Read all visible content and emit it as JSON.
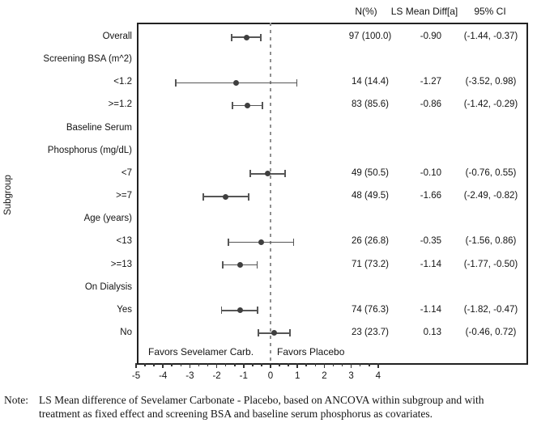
{
  "chart_data": {
    "type": "forest",
    "title": "",
    "ylabel": "Subgroup",
    "columns": {
      "n": "N(%)",
      "mean": "LS Mean Diff[a]",
      "ci": "95% CI"
    },
    "x_axis": {
      "major_ticks": [
        -5,
        -4,
        -3,
        -2,
        -1,
        0,
        1,
        2,
        3,
        4
      ],
      "minors_between_majors": 2,
      "range_shown": [
        -5,
        4
      ]
    },
    "reference_line_x": 0,
    "favors_left": "Favors Sevelamer Carb.",
    "favors_right": "Favors Placebo",
    "rows": [
      {
        "label": "Overall",
        "kind": "data",
        "n_pct": "97 (100.0)",
        "mean": -0.9,
        "mean_text": "-0.90",
        "ci_low": -1.44,
        "ci_high": -0.37,
        "ci_text": "(-1.44, -0.37)"
      },
      {
        "label": "Screening BSA (m^2)",
        "kind": "category"
      },
      {
        "label": "<1.2",
        "kind": "data",
        "n_pct": "14 (14.4)",
        "mean": -1.27,
        "mean_text": "-1.27",
        "ci_low": -3.52,
        "ci_high": 0.98,
        "ci_text": "(-3.52, 0.98)"
      },
      {
        "label": ">=1.2",
        "kind": "data",
        "n_pct": "83 (85.6)",
        "mean": -0.86,
        "mean_text": "-0.86",
        "ci_low": -1.42,
        "ci_high": -0.29,
        "ci_text": "(-1.42, -0.29)"
      },
      {
        "label": "Baseline Serum",
        "kind": "category"
      },
      {
        "label": "Phosphorus (mg/dL)",
        "kind": "category"
      },
      {
        "label": "<7",
        "kind": "data",
        "n_pct": "49 (50.5)",
        "mean": -0.1,
        "mean_text": "-0.10",
        "ci_low": -0.76,
        "ci_high": 0.55,
        "ci_text": "(-0.76, 0.55)"
      },
      {
        "label": ">=7",
        "kind": "data",
        "n_pct": "48 (49.5)",
        "mean": -1.66,
        "mean_text": "-1.66",
        "ci_low": -2.49,
        "ci_high": -0.82,
        "ci_text": "(-2.49, -0.82)"
      },
      {
        "label": "Age (years)",
        "kind": "category"
      },
      {
        "label": "<13",
        "kind": "data",
        "n_pct": "26 (26.8)",
        "mean": -0.35,
        "mean_text": "-0.35",
        "ci_low": -1.56,
        "ci_high": 0.86,
        "ci_text": "(-1.56, 0.86)"
      },
      {
        "label": ">=13",
        "kind": "data",
        "n_pct": "71 (73.2)",
        "mean": -1.14,
        "mean_text": "-1.14",
        "ci_low": -1.77,
        "ci_high": -0.5,
        "ci_text": "(-1.77, -0.50)"
      },
      {
        "label": "On Dialysis",
        "kind": "category"
      },
      {
        "label": "Yes",
        "kind": "data",
        "n_pct": "74 (76.3)",
        "mean": -1.14,
        "mean_text": "-1.14",
        "ci_low": -1.82,
        "ci_high": -0.47,
        "ci_text": "(-1.82, -0.47)"
      },
      {
        "label": "No",
        "kind": "data",
        "n_pct": "23 (23.7)",
        "mean": 0.13,
        "mean_text": "0.13",
        "ci_low": -0.46,
        "ci_high": 0.72,
        "ci_text": "(-0.46, 0.72)"
      }
    ],
    "note": {
      "label": "Note:",
      "lines": [
        "LS Mean difference of Sevelamer Carbonate - Placebo, based on ANCOVA within subgroup and with",
        "treatment as fixed effect and screening BSA and baseline serum phosphorus as covariates."
      ]
    },
    "colors": {
      "marker": "#3f3f3f",
      "whisker": "#565656",
      "frame": "#222222",
      "reference_line": "#8f8f8f"
    }
  }
}
